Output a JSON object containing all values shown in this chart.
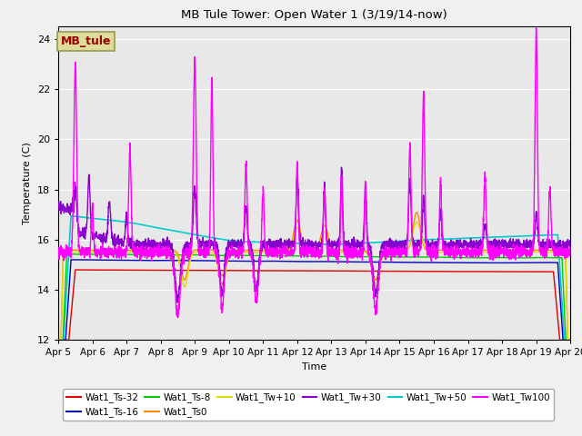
{
  "title": "MB Tule Tower: Open Water 1 (3/19/14-now)",
  "xlabel": "Time",
  "ylabel": "Temperature (C)",
  "ylim": [
    12,
    24.5
  ],
  "yticks": [
    12,
    14,
    16,
    18,
    20,
    22,
    24
  ],
  "xlim": [
    0,
    15
  ],
  "xtick_labels": [
    "Apr 5",
    "Apr 6",
    "Apr 7",
    "Apr 8",
    "Apr 9",
    "Apr 10",
    "Apr 11",
    "Apr 12",
    "Apr 13",
    "Apr 14",
    "Apr 15",
    "Apr 16",
    "Apr 17",
    "Apr 18",
    "Apr 19",
    "Apr 20"
  ],
  "legend_label": "MB_tule",
  "series_colors": {
    "Wat1_Ts-32": "#dd0000",
    "Wat1_Ts-16": "#0000bb",
    "Wat1_Ts-8": "#00cc00",
    "Wat1_Ts0": "#ff8800",
    "Wat1_Tw+10": "#dddd00",
    "Wat1_Tw+30": "#8800cc",
    "Wat1_Tw+50": "#00cccc",
    "Wat1_Tw100": "#ff00ff"
  },
  "fig_bg_color": "#f0f0f0",
  "plot_bg_color": "#e8e8e8",
  "box_color": "#dddd99",
  "box_text_color": "#990000"
}
